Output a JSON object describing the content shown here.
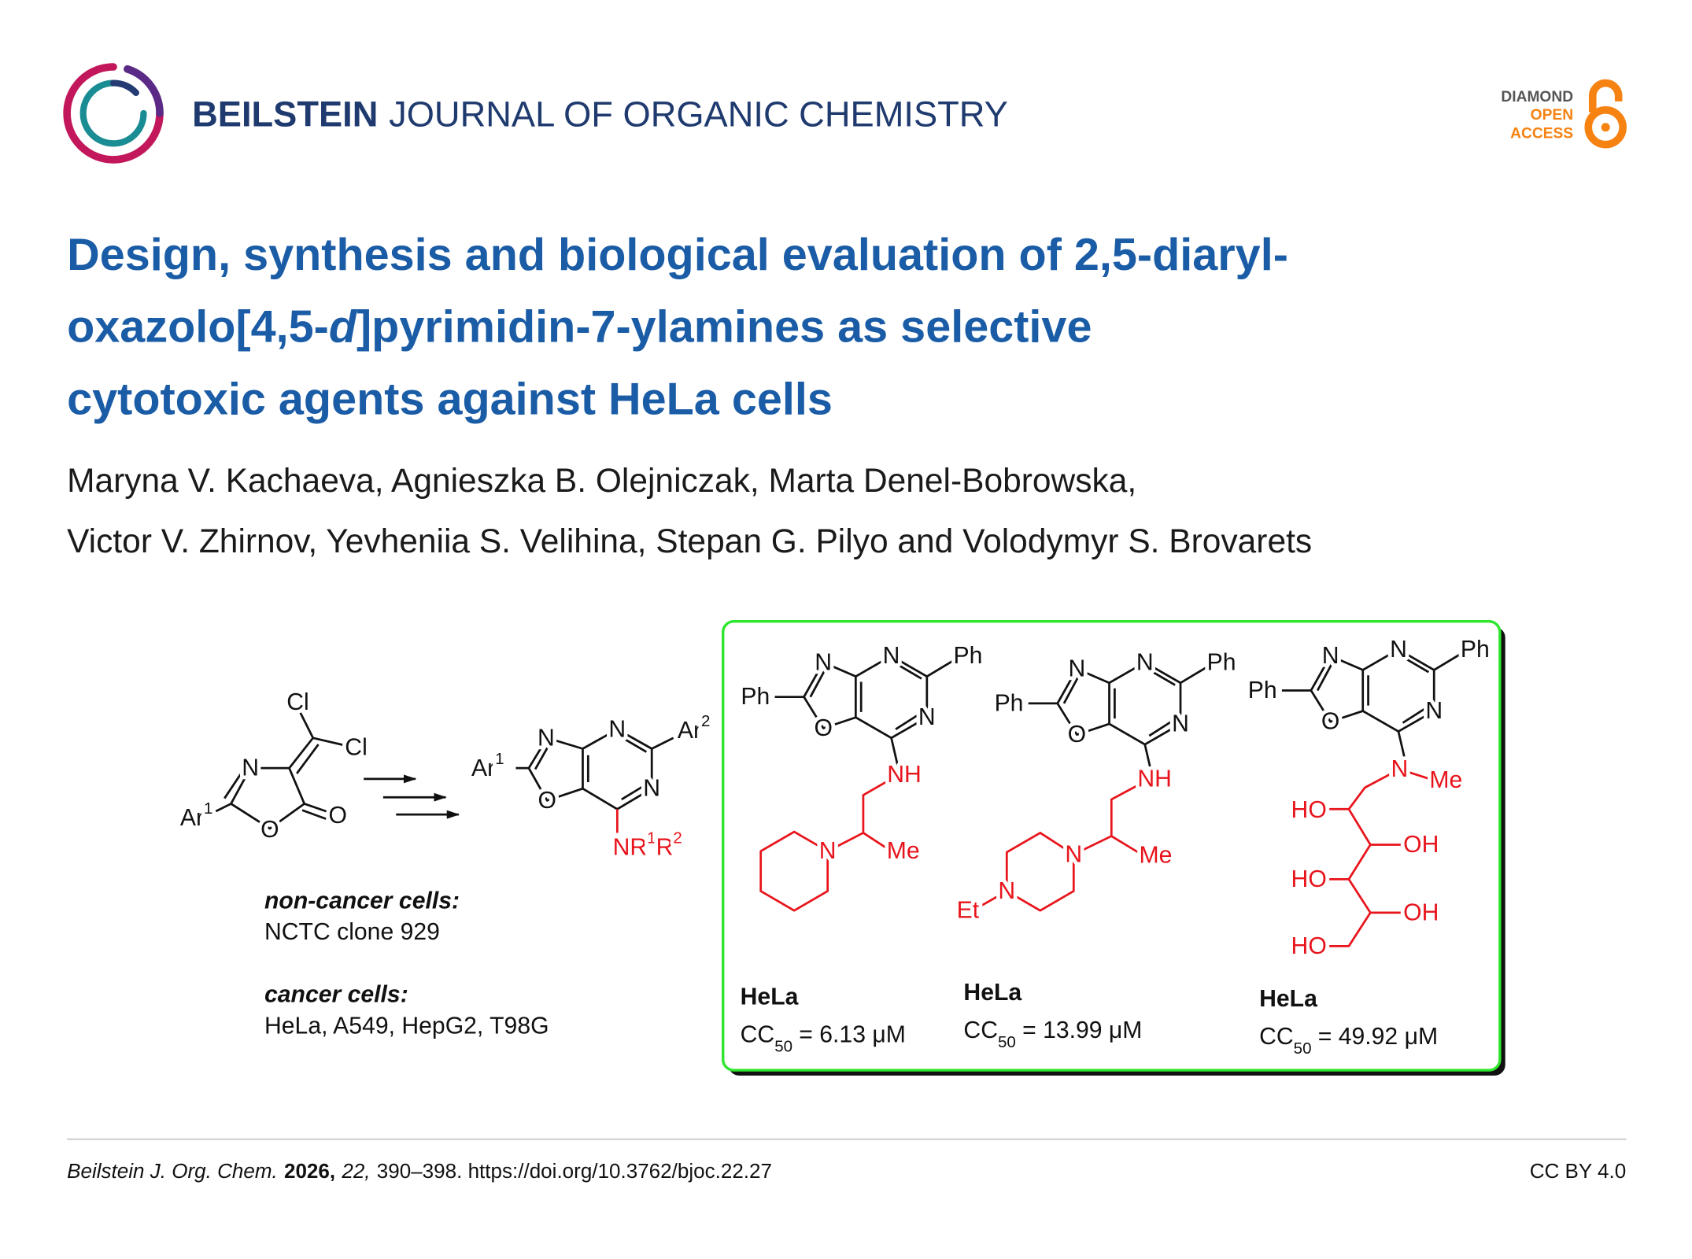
{
  "header": {
    "brand": "BEILSTEIN",
    "journal": "JOURNAL OF ORGANIC CHEMISTRY",
    "badge": [
      "DIAMOND",
      "OPEN",
      "ACCESS"
    ]
  },
  "article": {
    "title": {
      "line1": "Design, synthesis and biological evaluation of 2,5-diaryl-",
      "line2": [
        "oxazolo[4,5-",
        "d",
        "]pyrimidin-7-ylamines as selective"
      ],
      "line3": "cytotoxic agents against HeLa cells"
    },
    "authors": [
      "Maryna V. Kachaeva, Agnieszka B. Olejniczak, Marta Denel-Bobrowska,",
      "Victor V. Zhirnov, Yevheniia S. Velihina, Stepan G. Pilyo and Volodymyr S. Brovarets"
    ]
  },
  "graphic": {
    "reactant": {
      "atoms": [
        "Cl",
        "Cl",
        "N",
        "O",
        "O"
      ],
      "ar": [
        "Ar",
        "1"
      ]
    },
    "product": {
      "atoms": [
        "N",
        "N",
        "O",
        "N"
      ],
      "ar1": [
        "Ar",
        "1"
      ],
      "ar2": [
        "Ar",
        "2"
      ],
      "amine": [
        "NR",
        "1",
        "R",
        "2"
      ]
    },
    "cell_lines": {
      "non_cancer_heading": "non-cancer cells:",
      "non_cancer": "NCTC clone 929",
      "cancer_heading": "cancer cells:",
      "cancer": "HeLa, A549, HepG2, T98G"
    },
    "compounds": [
      {
        "core": [
          "N",
          "N",
          "Ph",
          "Ph",
          "N",
          "O"
        ],
        "side": [
          "NH",
          "N",
          "Me"
        ],
        "cell": "HeLa",
        "cc": [
          "CC",
          "50",
          "= 6.13 μM"
        ]
      },
      {
        "core": [
          "N",
          "N",
          "Ph",
          "Ph",
          "N",
          "O"
        ],
        "side": [
          "NH",
          "N",
          "Me",
          "N",
          "Et"
        ],
        "cell": "HeLa",
        "cc": [
          "CC",
          "50",
          "= 13.99 μM"
        ]
      },
      {
        "core": [
          "N",
          "N",
          "Ph",
          "Ph",
          "N",
          "O"
        ],
        "side": [
          "N",
          "Me",
          "HO",
          "OH",
          "HO",
          "OH",
          "HO"
        ],
        "cell": "HeLa",
        "cc": [
          "CC",
          "50",
          "= 49.92 μM"
        ]
      }
    ]
  },
  "footer": {
    "journal": "Beilstein J. Org. Chem.",
    "year": "2026,",
    "volume": "22,",
    "pages": "390–398. https://doi.org/10.3762/bjoc.22.27",
    "license": "CC BY 4.0"
  }
}
